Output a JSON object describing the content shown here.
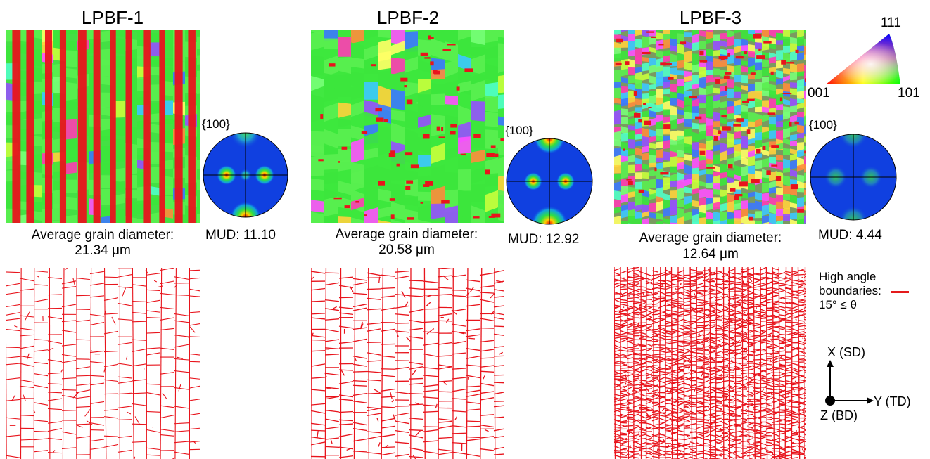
{
  "panels": [
    {
      "title": "LPBF-1",
      "pole_figure_label": "{100}",
      "mud": "MUD: 11.10",
      "grain_label": "Average grain diameter:",
      "grain_value": "21.34 μm"
    },
    {
      "title": "LPBF-2",
      "pole_figure_label": "{100}",
      "mud": "MUD: 12.92",
      "grain_label": "Average grain diameter:",
      "grain_value": "20.58 μm"
    },
    {
      "title": "LPBF-3",
      "pole_figure_label": "{100}",
      "mud": "MUD: 4.44",
      "grain_label": "Average grain diameter:",
      "grain_value": "12.64 μm"
    }
  ],
  "ipf_key": {
    "top": "111",
    "left": "001",
    "right": "101"
  },
  "hab_legend": {
    "line1": "High angle",
    "line2": "boundaries:",
    "line3": "15° ≤ θ",
    "color": "#e41a1c"
  },
  "axes": {
    "x": "X (SD)",
    "y": "Y (TD)",
    "z": "Z (BD)"
  },
  "colors": {
    "boundary": "#e8141c",
    "green": "#33e633",
    "pole_bg": "#1040e0"
  }
}
